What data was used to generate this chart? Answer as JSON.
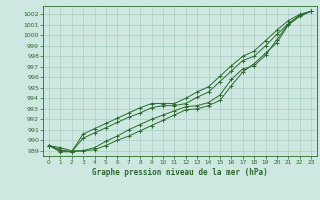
{
  "title": "Graphe pression niveau de la mer (hPa)",
  "bg_color": "#cce8e0",
  "grid_color": "#aacfc8",
  "line_color": "#2d6a2d",
  "xlim": [
    -0.5,
    23.5
  ],
  "ylim": [
    988.5,
    1002.8
  ],
  "yticks": [
    989,
    990,
    991,
    992,
    993,
    994,
    995,
    996,
    997,
    998,
    999,
    1000,
    1001,
    1002
  ],
  "xticks": [
    0,
    1,
    2,
    3,
    4,
    5,
    6,
    7,
    8,
    9,
    10,
    11,
    12,
    13,
    14,
    15,
    16,
    17,
    18,
    19,
    20,
    21,
    22,
    23
  ],
  "series": [
    [
      989.5,
      989.3,
      989.0,
      989.0,
      989.1,
      989.5,
      990.0,
      990.4,
      990.9,
      991.4,
      991.9,
      992.4,
      992.9,
      993.0,
      993.3,
      993.8,
      995.2,
      996.5,
      997.3,
      998.3,
      999.3,
      1001.0,
      1001.8,
      1002.3
    ],
    [
      989.5,
      989.1,
      988.9,
      989.0,
      989.3,
      989.9,
      990.4,
      991.0,
      991.5,
      992.0,
      992.4,
      992.8,
      993.2,
      993.3,
      993.6,
      994.3,
      995.8,
      996.8,
      997.1,
      998.1,
      999.6,
      1001.1,
      1001.9,
      1002.3
    ],
    [
      989.5,
      989.0,
      988.9,
      990.2,
      990.7,
      991.2,
      991.7,
      992.2,
      992.6,
      993.1,
      993.3,
      993.3,
      993.5,
      994.1,
      994.6,
      995.6,
      996.6,
      997.6,
      998.0,
      999.0,
      1000.1,
      1001.1,
      1001.9,
      1002.3
    ],
    [
      989.5,
      988.9,
      988.9,
      990.6,
      991.1,
      991.6,
      992.1,
      992.6,
      993.1,
      993.5,
      993.5,
      993.5,
      994.0,
      994.6,
      995.1,
      996.1,
      997.1,
      998.0,
      998.5,
      999.5,
      1000.5,
      1001.4,
      1002.0,
      1002.3
    ]
  ]
}
